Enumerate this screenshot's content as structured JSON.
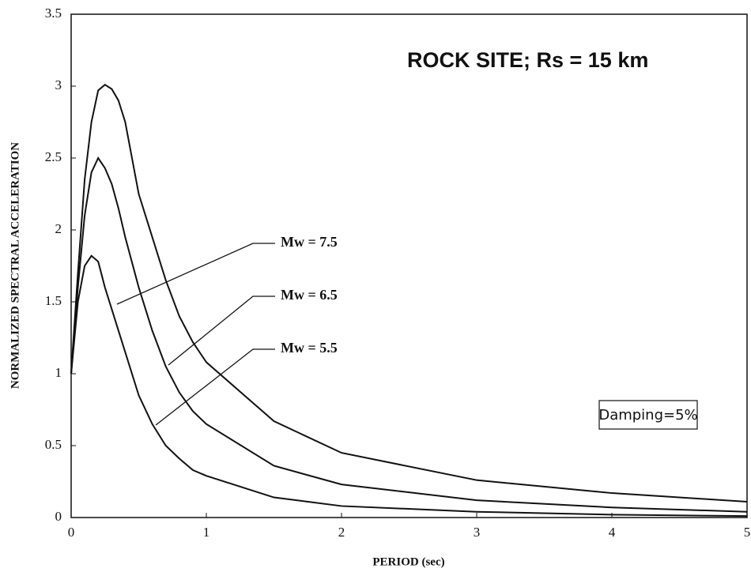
{
  "chart_data": {
    "type": "line",
    "title": "ROCK SITE; Rs = 15 km",
    "x_label": "PERIOD (sec)",
    "y_label": "NORMALIZED SPECTRAL ACCELERATION",
    "annotation": "Damping=5%",
    "x": [
      0,
      0.05,
      0.1,
      0.15,
      0.2,
      0.25,
      0.3,
      0.35,
      0.4,
      0.5,
      0.6,
      0.7,
      0.8,
      0.9,
      1.0,
      1.5,
      2,
      3,
      4,
      5
    ],
    "series": [
      {
        "name": "Mw = 7.5",
        "color": "#111111",
        "values": [
          1.0,
          1.7,
          2.35,
          2.75,
          2.97,
          3.01,
          2.98,
          2.9,
          2.75,
          2.25,
          1.95,
          1.65,
          1.4,
          1.22,
          1.08,
          0.67,
          0.45,
          0.26,
          0.17,
          0.11
        ]
      },
      {
        "name": "Mw = 6.5",
        "color": "#111111",
        "values": [
          1.0,
          1.6,
          2.1,
          2.4,
          2.5,
          2.43,
          2.32,
          2.15,
          1.95,
          1.6,
          1.3,
          1.05,
          0.87,
          0.74,
          0.65,
          0.36,
          0.23,
          0.12,
          0.07,
          0.04
        ]
      },
      {
        "name": "Mw = 5.5",
        "color": "#111111",
        "values": [
          1.0,
          1.5,
          1.75,
          1.82,
          1.78,
          1.6,
          1.45,
          1.3,
          1.15,
          0.85,
          0.65,
          0.5,
          0.41,
          0.33,
          0.29,
          0.14,
          0.08,
          0.04,
          0.02,
          0.01
        ]
      }
    ],
    "xlim": [
      0,
      5
    ],
    "xticks": [
      0,
      1,
      2,
      3,
      4,
      5
    ],
    "ylim": [
      0,
      3.5
    ],
    "yticks": [
      0,
      0.5,
      1,
      1.5,
      2,
      2.5,
      3,
      3.5
    ]
  }
}
